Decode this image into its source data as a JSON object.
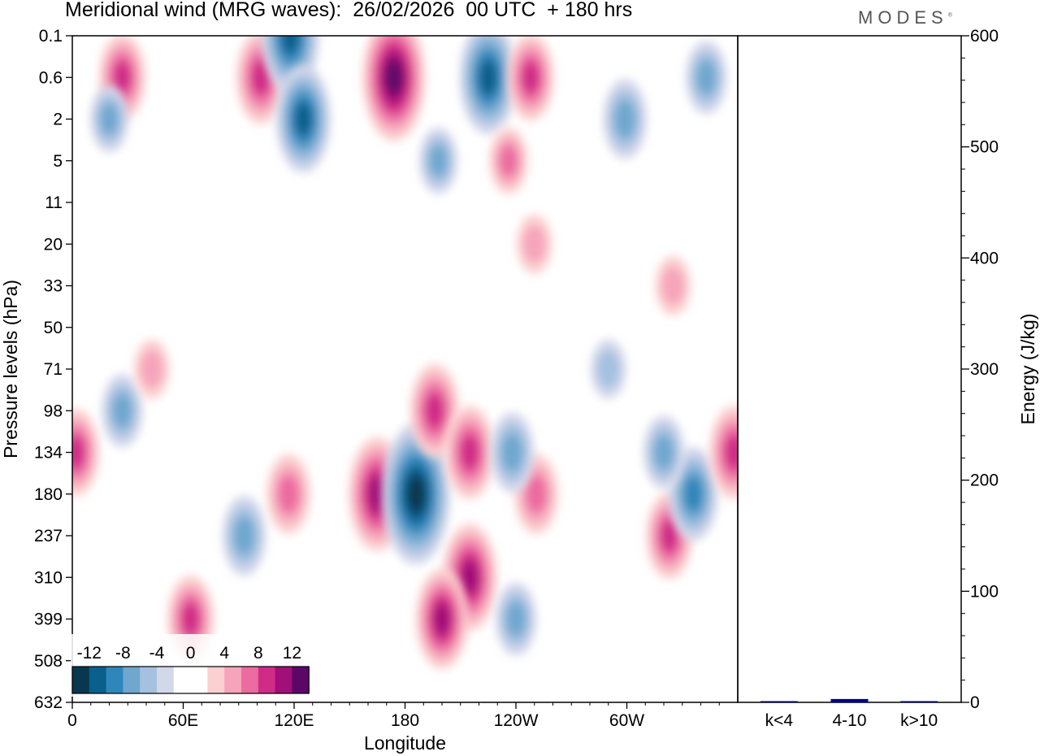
{
  "header": {
    "title": "Meridional wind (MRG waves):  26/02/2026  00 UTC  + 180 hrs",
    "brand": "MODES"
  },
  "chart_data": [
    {
      "type": "heatmap",
      "title": "Meridional wind (MRG waves):  26/02/2026  00 UTC  + 180 hrs",
      "xlabel": "Longitude",
      "ylabel": "Pressure levels (hPa)",
      "x_range_deg": [
        0,
        360
      ],
      "x_ticks": [
        {
          "lon": 0,
          "label": "0"
        },
        {
          "lon": 60,
          "label": "60E"
        },
        {
          "lon": 120,
          "label": "120E"
        },
        {
          "lon": 180,
          "label": "180"
        },
        {
          "lon": 240,
          "label": "120W"
        },
        {
          "lon": 300,
          "label": "60W"
        }
      ],
      "y_levels": [
        "0.1",
        "0.6",
        "2",
        "5",
        "11",
        "20",
        "33",
        "50",
        "71",
        "98",
        "134",
        "180",
        "237",
        "310",
        "399",
        "508",
        "632"
      ],
      "colorbar": {
        "labels": [
          "-12",
          "-8",
          "-4",
          "0",
          "4",
          "8",
          "12"
        ],
        "colors": [
          "#08374f",
          "#0a5f8c",
          "#2e86bb",
          "#6fa7cf",
          "#a4c1e0",
          "#d3d7ea",
          "#ffffff",
          "#ffffff",
          "#fbd0d0",
          "#f6a4bb",
          "#ec6ba0",
          "#d02b87",
          "#a10f78",
          "#5c0768"
        ]
      },
      "features": [
        {
          "lon": 27,
          "level": "0.6",
          "value": 8
        },
        {
          "lon": 102,
          "level": "0.6",
          "value": 9
        },
        {
          "lon": 118,
          "level": "0.1",
          "value": -12
        },
        {
          "lon": 125,
          "level": "2",
          "value": -11
        },
        {
          "lon": 174,
          "level": "0.6",
          "value": 14
        },
        {
          "lon": 225,
          "level": "0.6",
          "value": -12
        },
        {
          "lon": 248,
          "level": "0.6",
          "value": 8
        },
        {
          "lon": 236,
          "level": "5",
          "value": 5
        },
        {
          "lon": 299,
          "level": "2",
          "value": -7
        },
        {
          "lon": 343,
          "level": "0.6",
          "value": -6
        },
        {
          "lon": 20,
          "level": "2",
          "value": -5
        },
        {
          "lon": 198,
          "level": "5",
          "value": -5
        },
        {
          "lon": 27,
          "level": "98",
          "value": -6
        },
        {
          "lon": 2,
          "level": "134",
          "value": 8
        },
        {
          "lon": 93,
          "level": "237",
          "value": -7
        },
        {
          "lon": 117,
          "level": "180",
          "value": 7
        },
        {
          "lon": 165,
          "level": "180",
          "value": 12
        },
        {
          "lon": 186,
          "level": "180",
          "value": -16
        },
        {
          "lon": 196,
          "level": "98",
          "value": 9
        },
        {
          "lon": 215,
          "level": "134",
          "value": 9
        },
        {
          "lon": 215,
          "level": "310",
          "value": 11
        },
        {
          "lon": 200,
          "level": "399",
          "value": 10
        },
        {
          "lon": 64,
          "level": "399",
          "value": 8
        },
        {
          "lon": 251,
          "level": "180",
          "value": 7
        },
        {
          "lon": 240,
          "level": "399",
          "value": -6
        },
        {
          "lon": 323,
          "level": "237",
          "value": 8
        },
        {
          "lon": 336,
          "level": "180",
          "value": -9
        },
        {
          "lon": 358,
          "level": "134",
          "value": 9
        },
        {
          "lon": 320,
          "level": "134",
          "value": -6
        },
        {
          "lon": 238,
          "level": "134",
          "value": -7
        },
        {
          "lon": 43,
          "level": "71",
          "value": 4
        },
        {
          "lon": 250,
          "level": "20",
          "value": 4
        },
        {
          "lon": 325,
          "level": "33",
          "value": 4
        },
        {
          "lon": 290,
          "level": "71",
          "value": -4
        }
      ]
    },
    {
      "type": "bar",
      "categories": [
        "k<4",
        "4-10",
        "k>10"
      ],
      "values": [
        0.5,
        3,
        0.3
      ],
      "ylabel": "Energy (J/kg)",
      "ylim": [
        0,
        600
      ],
      "yticks": [
        0,
        100,
        200,
        300,
        400,
        500,
        600
      ],
      "bar_color": "#00008b"
    }
  ]
}
